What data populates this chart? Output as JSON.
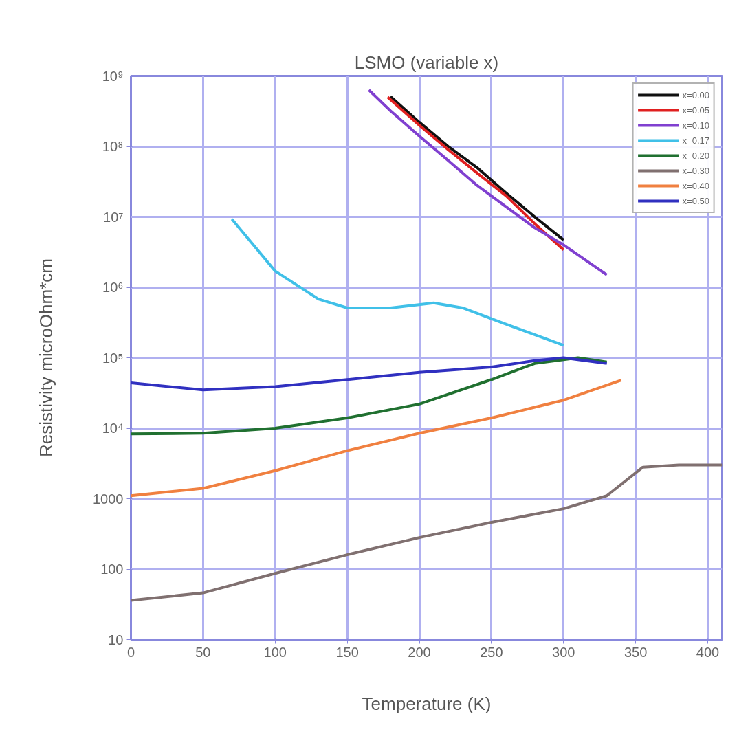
{
  "chart_data": {
    "type": "line",
    "title": "LSMO (variable x)",
    "xlabel": "Temperature (K)",
    "ylabel": "Resistivity microOhm*cm",
    "log": "y",
    "grid": true,
    "legend": "top right",
    "line_style": "solid",
    "marker": "none",
    "xlim": [
      0,
      410
    ],
    "xticks": [
      0,
      50,
      100,
      150,
      200,
      250,
      300,
      350,
      400
    ],
    "ylim": [
      10,
      1000000000
    ],
    "yticks": [
      10,
      100,
      1000,
      {
        "value": 10000,
        "label": "10⁴"
      },
      {
        "value": 100000,
        "label": "10⁵"
      },
      {
        "value": 1000000,
        "label": "10⁶"
      },
      {
        "value": 10000000,
        "label": "10⁷"
      },
      {
        "value": 100000000,
        "label": "10⁸"
      },
      {
        "value": 1000000000,
        "label": "10⁹"
      }
    ],
    "series": [
      {
        "name": "x=0.00",
        "color": "#101010",
        "x": [
          180,
          200,
          220,
          240,
          260,
          280,
          300
        ],
        "values": [
          510000000,
          220000000,
          100000000,
          50000000,
          22000000,
          10000000,
          4700000
        ]
      },
      {
        "name": "x=0.05",
        "color": "#e02020",
        "x": [
          178,
          200,
          220,
          240,
          260,
          280,
          300
        ],
        "values": [
          500000000,
          200000000,
          90000000,
          42000000,
          20000000,
          8000000,
          3400000
        ]
      },
      {
        "name": "x=0.10",
        "color": "#8040d0",
        "x": [
          165,
          180,
          200,
          220,
          240,
          260,
          280,
          300,
          330
        ],
        "values": [
          630000000,
          320000000,
          140000000,
          63000000,
          28000000,
          14000000,
          7000000,
          4000000,
          1500000
        ]
      },
      {
        "name": "x=0.17",
        "color": "#40c0e8",
        "x": [
          70,
          100,
          130,
          150,
          180,
          210,
          230,
          260,
          300
        ],
        "values": [
          9300000,
          1700000,
          680000,
          510000,
          510000,
          600000,
          510000,
          300000,
          150000
        ]
      },
      {
        "name": "x=0.20",
        "color": "#207030",
        "x": [
          0,
          50,
          100,
          150,
          200,
          250,
          280,
          310,
          330
        ],
        "values": [
          8300,
          8500,
          10000,
          14000,
          22000,
          49000,
          83000,
          100000,
          87000
        ]
      },
      {
        "name": "x=0.30",
        "color": "#807070",
        "x": [
          0,
          50,
          100,
          150,
          200,
          250,
          300,
          330,
          355,
          380,
          410
        ],
        "values": [
          36,
          46,
          87,
          160,
          280,
          460,
          720,
          1100,
          2800,
          3000,
          3000
        ]
      },
      {
        "name": "x=0.40",
        "color": "#f08040",
        "x": [
          0,
          50,
          100,
          150,
          200,
          250,
          300,
          340
        ],
        "values": [
          1100,
          1400,
          2500,
          4800,
          8500,
          14000,
          25000,
          48000
        ]
      },
      {
        "name": "x=0.50",
        "color": "#3030c0",
        "x": [
          0,
          50,
          100,
          150,
          200,
          250,
          280,
          300,
          330
        ],
        "values": [
          44000,
          35000,
          39000,
          49000,
          62000,
          74000,
          91000,
          100000,
          83000
        ]
      }
    ]
  }
}
